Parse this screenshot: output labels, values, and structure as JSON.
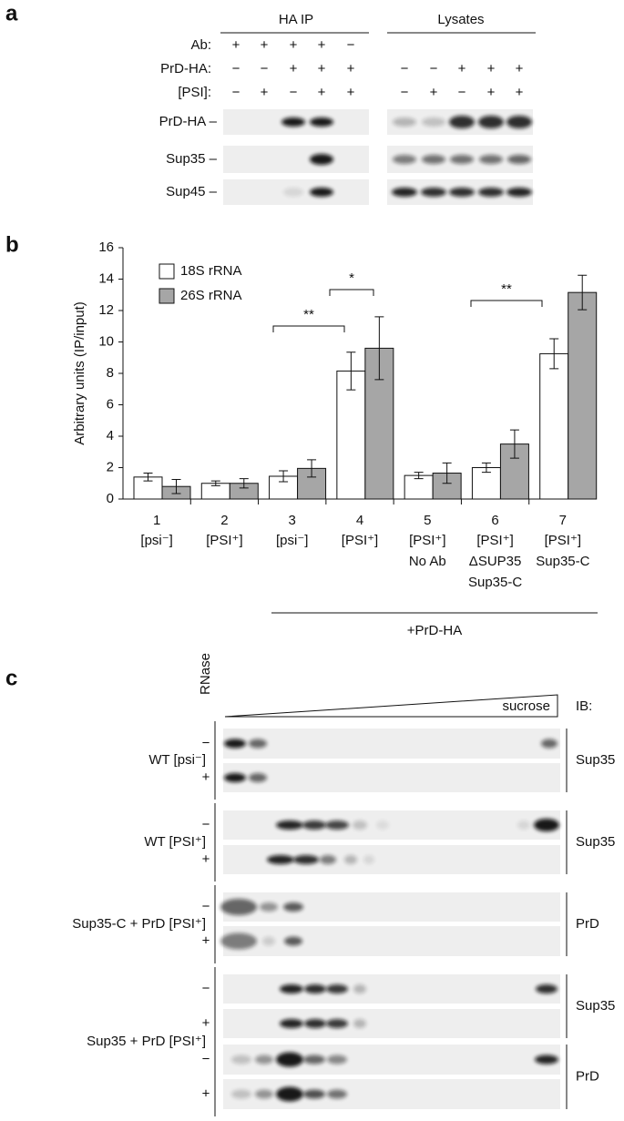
{
  "panel_a": {
    "label": "a",
    "headers": [
      "HA IP",
      "Lysates"
    ],
    "row_labels": [
      "Ab:",
      "PrD-HA:",
      "[PSI]:"
    ],
    "ha_ip": {
      "ab": [
        "+",
        "+",
        "+",
        "+",
        "−"
      ],
      "prd_ha": [
        "−",
        "−",
        "+",
        "+",
        "+"
      ],
      "psi": [
        "−",
        "+",
        "−",
        "+",
        "+"
      ]
    },
    "lysates": {
      "prd_ha": [
        "−",
        "−",
        "+",
        "+",
        "+"
      ],
      "psi": [
        "−",
        "+",
        "−",
        "+",
        "+"
      ]
    },
    "blot_labels": [
      "PrD-HA –",
      "Sup35 –",
      "Sup45 –"
    ]
  },
  "chart_data": {
    "type": "bar",
    "label": "b",
    "ylabel": "Arbitrary units (IP/input)",
    "categories": [
      "1",
      "2",
      "3",
      "4",
      "5",
      "6",
      "7"
    ],
    "category_sublabels": [
      [
        "[psi⁻]"
      ],
      [
        "[PSI⁺]"
      ],
      [
        "[psi⁻]"
      ],
      [
        "[PSI⁺]"
      ],
      [
        "[PSI⁺]",
        "No Ab"
      ],
      [
        "[PSI⁺]",
        "ΔSUP35",
        "Sup35-C"
      ],
      [
        "[PSI⁺]",
        "Sup35-C"
      ]
    ],
    "group_label": "+PrD-HA",
    "series": [
      {
        "name": "18S rRNA",
        "color": "#ffffff",
        "values": [
          1.4,
          1.0,
          1.45,
          8.15,
          1.5,
          2.0,
          9.25
        ],
        "errors": [
          0.25,
          0.15,
          0.35,
          1.2,
          0.2,
          0.3,
          0.95
        ]
      },
      {
        "name": "26S rRNA",
        "color": "#a6a6a6",
        "values": [
          0.8,
          1.0,
          1.95,
          9.6,
          1.65,
          3.5,
          13.15
        ],
        "errors": [
          0.45,
          0.3,
          0.55,
          2.0,
          0.65,
          0.9,
          1.1
        ]
      }
    ],
    "annotations": [
      "**",
      "*",
      "**"
    ],
    "ylim": [
      0,
      16
    ],
    "yticks": [
      0,
      2,
      4,
      6,
      8,
      10,
      12,
      14,
      16
    ],
    "legend": "upper left"
  },
  "panel_c": {
    "label": "c",
    "rnase_label": "RNase",
    "gradient_label": "sucrose",
    "ib_label": "IB:",
    "groups": [
      {
        "label": "WT [psi⁻]",
        "rnase": [
          "−",
          "+"
        ],
        "ib": [
          "Sup35"
        ]
      },
      {
        "label": "WT [PSI⁺]",
        "rnase": [
          "−",
          "+"
        ],
        "ib": [
          "Sup35"
        ]
      },
      {
        "label": "Sup35-C + PrD [PSI⁺]",
        "rnase": [
          "−",
          "+"
        ],
        "ib": [
          "PrD"
        ]
      },
      {
        "label": "Sup35 + PrD [PSI⁺]",
        "rnase": [
          "−",
          "+",
          "−",
          "+"
        ],
        "ib": [
          "Sup35",
          "PrD"
        ]
      }
    ]
  }
}
